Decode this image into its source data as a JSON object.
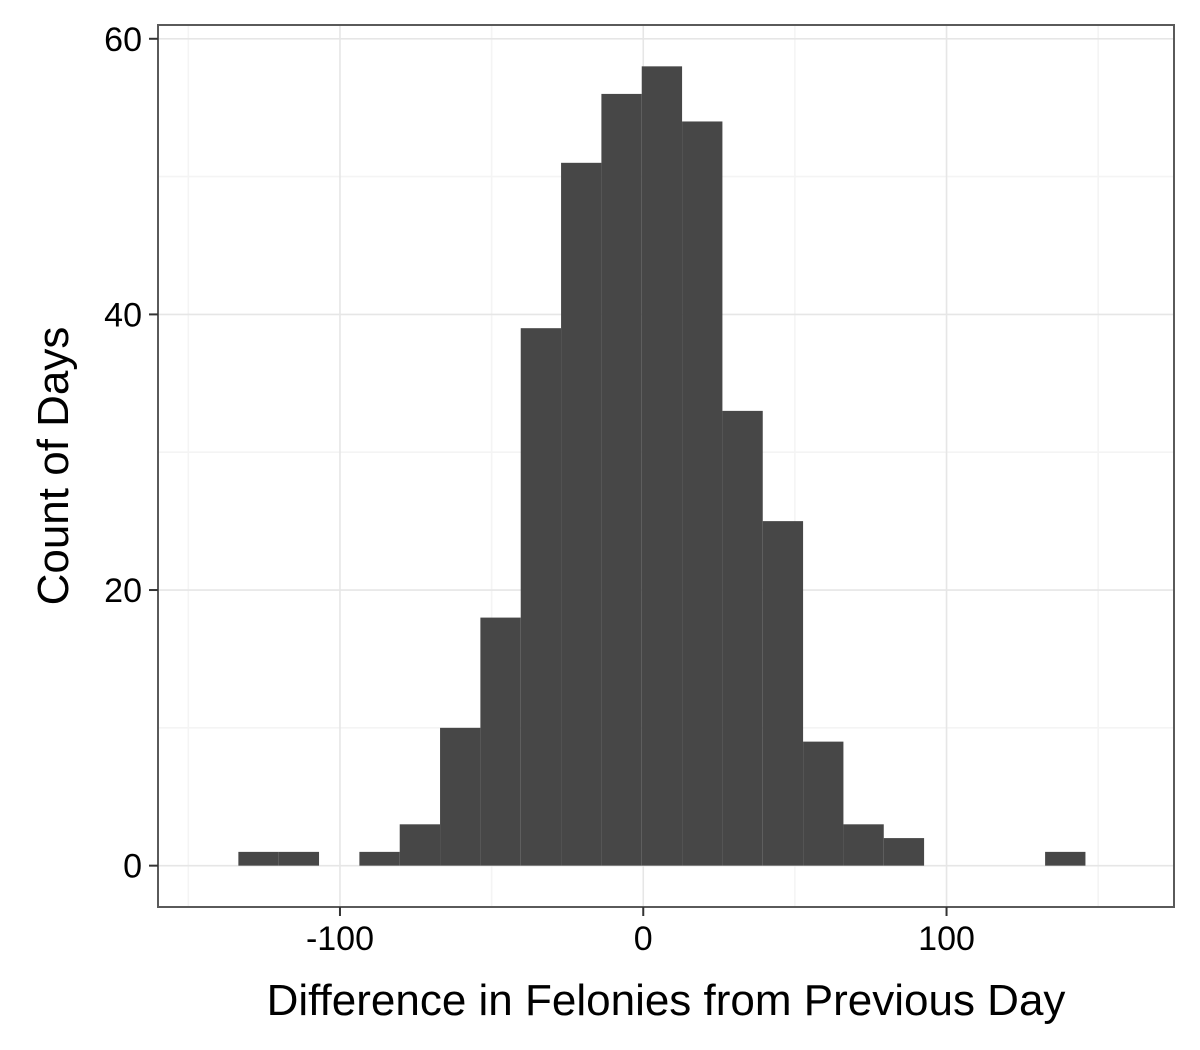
{
  "chart_data": {
    "type": "bar",
    "subtype": "histogram",
    "title": "",
    "xlabel": "Difference in Felonies from Previous Day",
    "ylabel": "Count of Days",
    "xlim": [
      -160,
      175
    ],
    "ylim": [
      -3,
      61
    ],
    "x_ticks": [
      -100,
      0,
      100
    ],
    "y_ticks": [
      0,
      20,
      40,
      60
    ],
    "x_tick_labels": [
      "-100",
      "0",
      "100"
    ],
    "y_tick_labels": [
      "0",
      "20",
      "40",
      "60"
    ],
    "grid": true,
    "bins": [
      {
        "x0": -133.5,
        "x1": -120.2,
        "count": 1
      },
      {
        "x0": -120.2,
        "x1": -106.9,
        "count": 1
      },
      {
        "x0": -106.9,
        "x1": -93.6,
        "count": 0
      },
      {
        "x0": -93.6,
        "x1": -80.3,
        "count": 1
      },
      {
        "x0": -80.3,
        "x1": -67.0,
        "count": 3
      },
      {
        "x0": -67.0,
        "x1": -53.7,
        "count": 10
      },
      {
        "x0": -53.7,
        "x1": -40.4,
        "count": 18
      },
      {
        "x0": -40.4,
        "x1": -27.1,
        "count": 39
      },
      {
        "x0": -27.1,
        "x1": -13.8,
        "count": 51
      },
      {
        "x0": -13.8,
        "x1": -0.5,
        "count": 56
      },
      {
        "x0": -0.5,
        "x1": 12.8,
        "count": 58
      },
      {
        "x0": 12.8,
        "x1": 26.1,
        "count": 54
      },
      {
        "x0": 26.1,
        "x1": 39.4,
        "count": 33
      },
      {
        "x0": 39.4,
        "x1": 52.7,
        "count": 25
      },
      {
        "x0": 52.7,
        "x1": 66.0,
        "count": 9
      },
      {
        "x0": 66.0,
        "x1": 79.3,
        "count": 3
      },
      {
        "x0": 79.3,
        "x1": 92.6,
        "count": 2
      },
      {
        "x0": 92.6,
        "x1": 105.9,
        "count": 0
      },
      {
        "x0": 105.9,
        "x1": 119.2,
        "count": 0
      },
      {
        "x0": 119.2,
        "x1": 132.5,
        "count": 0
      },
      {
        "x0": 132.5,
        "x1": 145.8,
        "count": 1
      }
    ],
    "bar_color": "#474747"
  }
}
